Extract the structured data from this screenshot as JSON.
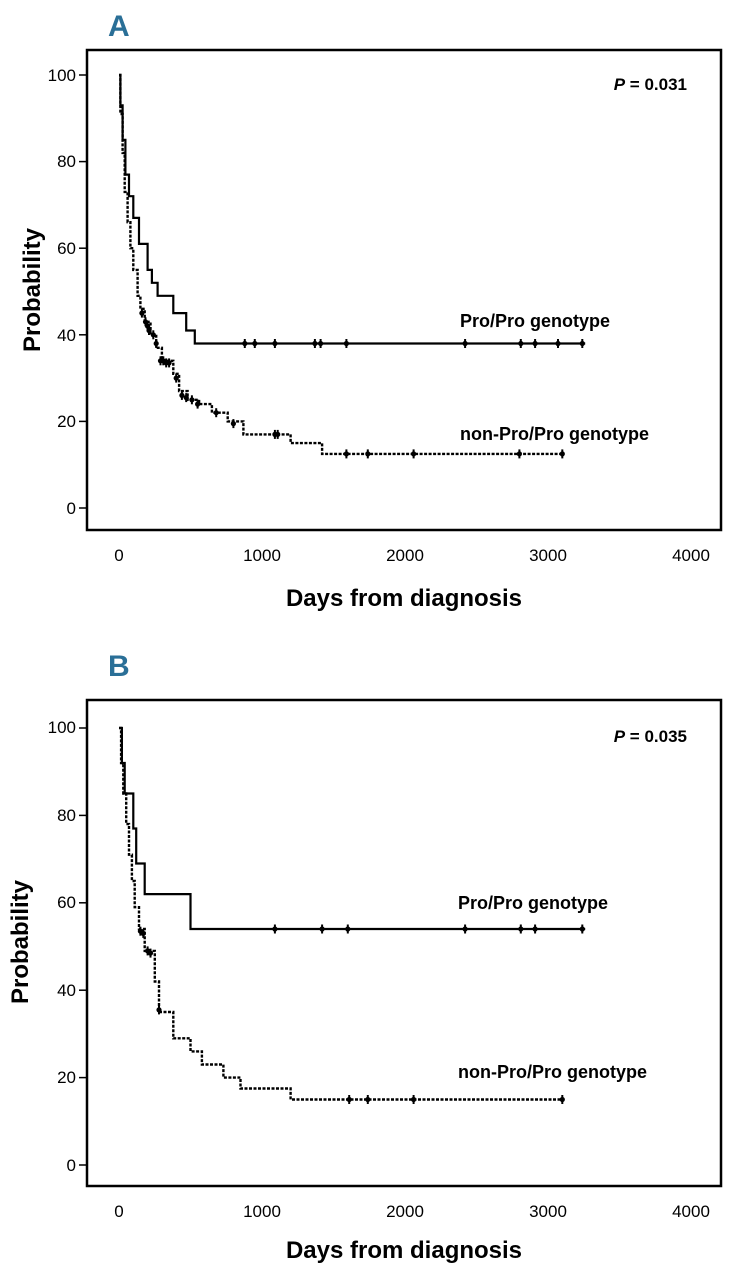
{
  "chart_data": [
    {
      "type": "line",
      "panel_label": "A",
      "title": "",
      "xlabel": "Days from diagnosis",
      "ylabel": "Probability",
      "xlim": [
        -200,
        4200
      ],
      "ylim": [
        -7,
        107
      ],
      "xticks": [
        0,
        1000,
        2000,
        3000,
        4000
      ],
      "xtick_labels": [
        "0",
        "1000",
        "2000",
        "3000",
        "4000"
      ],
      "yticks": [
        0,
        20,
        40,
        60,
        80,
        100
      ],
      "ytick_labels": [
        "0",
        "20",
        "40",
        "60",
        "80",
        "100"
      ],
      "p_value_label": "P",
      "p_value_text": " = 0.031",
      "series": [
        {
          "name": "Pro/Pro genotype",
          "style": "solid",
          "steps": [
            [
              0,
              100
            ],
            [
              10,
              93
            ],
            [
              25,
              85
            ],
            [
              45,
              77
            ],
            [
              70,
              72
            ],
            [
              100,
              67
            ],
            [
              140,
              61
            ],
            [
              200,
              55
            ],
            [
              230,
              52
            ],
            [
              270,
              49
            ],
            [
              380,
              45
            ],
            [
              470,
              41
            ],
            [
              530,
              38
            ],
            [
              3260,
              38
            ]
          ],
          "censored": [
            [
              880,
              38
            ],
            [
              950,
              38
            ],
            [
              1090,
              38
            ],
            [
              1370,
              38
            ],
            [
              1410,
              38
            ],
            [
              1590,
              38
            ],
            [
              2420,
              38
            ],
            [
              2810,
              38
            ],
            [
              2910,
              38
            ],
            [
              3070,
              38
            ],
            [
              3240,
              38
            ]
          ]
        },
        {
          "name": "non-Pro/Pro genotype",
          "style": "dotted",
          "steps": [
            [
              0,
              100
            ],
            [
              10,
              91
            ],
            [
              25,
              82
            ],
            [
              40,
              73
            ],
            [
              60,
              66
            ],
            [
              80,
              60
            ],
            [
              100,
              55
            ],
            [
              130,
              49
            ],
            [
              150,
              46
            ],
            [
              180,
              43
            ],
            [
              220,
              40
            ],
            [
              260,
              37
            ],
            [
              300,
              34
            ],
            [
              380,
              31
            ],
            [
              420,
              27
            ],
            [
              480,
              25
            ],
            [
              560,
              24
            ],
            [
              650,
              22
            ],
            [
              760,
              20
            ],
            [
              870,
              17
            ],
            [
              1200,
              15
            ],
            [
              1420,
              12.5
            ],
            [
              3100,
              12.5
            ]
          ],
          "censored": [
            [
              160,
              45
            ],
            [
              185,
              43
            ],
            [
              200,
              42
            ],
            [
              210,
              41
            ],
            [
              240,
              40
            ],
            [
              260,
              38
            ],
            [
              290,
              34
            ],
            [
              310,
              34
            ],
            [
              330,
              33.5
            ],
            [
              350,
              33.5
            ],
            [
              400,
              30
            ],
            [
              440,
              26
            ],
            [
              470,
              25.5
            ],
            [
              510,
              25
            ],
            [
              550,
              24
            ],
            [
              680,
              22
            ],
            [
              800,
              19.5
            ],
            [
              1090,
              17
            ],
            [
              1110,
              17
            ],
            [
              1590,
              12.5
            ],
            [
              1740,
              12.5
            ],
            [
              2060,
              12.5
            ],
            [
              2800,
              12.5
            ],
            [
              3100,
              12.5
            ]
          ]
        }
      ]
    },
    {
      "type": "line",
      "panel_label": "B",
      "title": "",
      "xlabel": "Days from diagnosis",
      "ylabel": "Probability",
      "xlim": [
        -200,
        4200
      ],
      "ylim": [
        -7,
        107
      ],
      "xticks": [
        0,
        1000,
        2000,
        3000,
        4000
      ],
      "xtick_labels": [
        "0",
        "1000",
        "2000",
        "3000",
        "4000"
      ],
      "yticks": [
        0,
        20,
        40,
        60,
        80,
        100
      ],
      "ytick_labels": [
        "0",
        "20",
        "40",
        "60",
        "80",
        "100"
      ],
      "p_value_label": "P",
      "p_value_text": " = 0.035",
      "series": [
        {
          "name": "Pro/Pro genotype",
          "style": "solid",
          "steps": [
            [
              0,
              100
            ],
            [
              20,
              92
            ],
            [
              40,
              85
            ],
            [
              100,
              77
            ],
            [
              120,
              69
            ],
            [
              180,
              62
            ],
            [
              500,
              54
            ],
            [
              3260,
              54
            ]
          ],
          "censored": [
            [
              1090,
              54
            ],
            [
              1420,
              54
            ],
            [
              1600,
              54
            ],
            [
              2420,
              54
            ],
            [
              2810,
              54
            ],
            [
              2910,
              54
            ],
            [
              3240,
              54
            ]
          ]
        },
        {
          "name": "non-Pro/Pro genotype",
          "style": "dotted",
          "steps": [
            [
              0,
              100
            ],
            [
              15,
              92
            ],
            [
              30,
              85
            ],
            [
              50,
              78
            ],
            [
              70,
              71
            ],
            [
              90,
              65
            ],
            [
              110,
              59
            ],
            [
              140,
              54
            ],
            [
              180,
              49
            ],
            [
              250,
              42
            ],
            [
              280,
              35
            ],
            [
              380,
              29
            ],
            [
              500,
              26
            ],
            [
              580,
              23
            ],
            [
              730,
              20
            ],
            [
              850,
              17.5
            ],
            [
              1200,
              15
            ],
            [
              1420,
              15
            ],
            [
              3100,
              15
            ]
          ],
          "censored": [
            [
              150,
              53.5
            ],
            [
              170,
              53
            ],
            [
              200,
              49
            ],
            [
              220,
              48.5
            ],
            [
              280,
              35.5
            ],
            [
              1610,
              15
            ],
            [
              1740,
              15
            ],
            [
              2060,
              15
            ],
            [
              3100,
              15
            ]
          ]
        }
      ]
    }
  ]
}
